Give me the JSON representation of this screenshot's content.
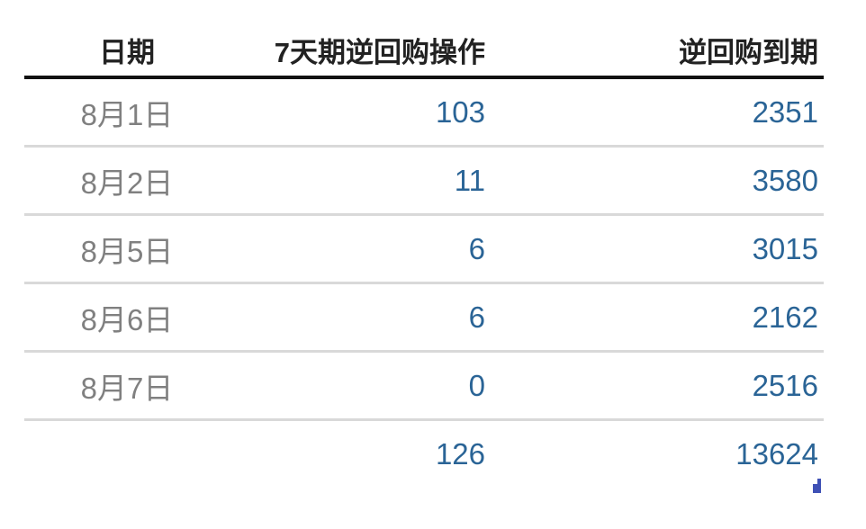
{
  "table": {
    "headers": [
      "日期",
      "7天期逆回购操作",
      "逆回购到期"
    ],
    "rows": [
      {
        "date": "8月1日",
        "reverse_repo_7d": "103",
        "maturity": "2351"
      },
      {
        "date": "8月2日",
        "reverse_repo_7d": "11",
        "maturity": "3580"
      },
      {
        "date": "8月5日",
        "reverse_repo_7d": "6",
        "maturity": "3015"
      },
      {
        "date": "8月6日",
        "reverse_repo_7d": "6",
        "maturity": "2162"
      },
      {
        "date": "8月7日",
        "reverse_repo_7d": "0",
        "maturity": "2516"
      }
    ],
    "total": {
      "date": "",
      "reverse_repo_7d": "126",
      "maturity": "13624"
    }
  },
  "colors": {
    "value_text": "#2a6496",
    "date_text": "#808080",
    "header_text": "#222222",
    "mark": "#3f51b5"
  }
}
